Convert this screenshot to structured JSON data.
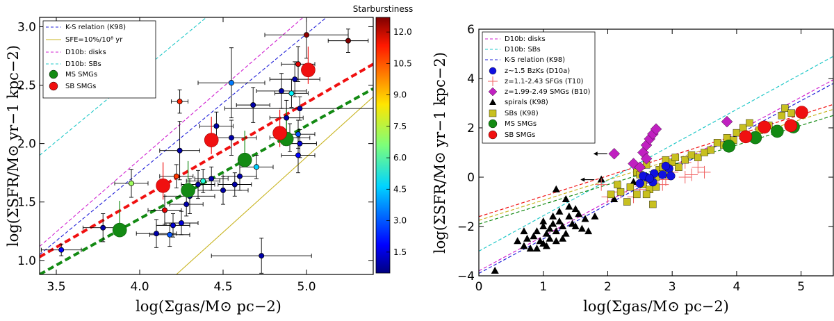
{
  "chart_data": [
    {
      "type": "scatter",
      "panel": "left",
      "xlabel": "log(Σgas/M⊙ pc−2)",
      "ylabel": "log(ΣSFR/M⊙ yr−1 kpc−2)",
      "xlim": [
        3.4,
        5.4
      ],
      "ylim": [
        0.88,
        3.08
      ],
      "xticks": [
        "3.5",
        "4.0",
        "4.5",
        "5.0"
      ],
      "yticks": [
        "1.0",
        "1.5",
        "2.0",
        "2.5",
        "3.0"
      ],
      "colorbar": {
        "title": "Starburstiness",
        "range": [
          0.5,
          12.7
        ],
        "ticks": [
          "1.5",
          "3.0",
          "4.5",
          "6.0",
          "7.5",
          "9.0",
          "10.5",
          "12.0"
        ]
      },
      "legend": [
        {
          "label": "K-S relation (K98)",
          "color": "#2020d8",
          "style": "dashed"
        },
        {
          "label": "SFE=10%/10⁸ yr",
          "color": "#c8b420",
          "style": "solid"
        },
        {
          "label": "D10b: disks",
          "color": "#d020d0",
          "style": "dashed"
        },
        {
          "label": "D10b: SBs",
          "color": "#20c8c8",
          "style": "dashed"
        },
        {
          "label": "MS SMGs",
          "color": "#138a13",
          "style": "marker"
        },
        {
          "label": "SB SMGs",
          "color": "#f01010",
          "style": "marker"
        }
      ],
      "lines": [
        {
          "name": "K-S relation (K98)",
          "color": "#2020d8",
          "points": [
            [
              3.4,
              1.05
            ],
            [
              5.12,
              3.08
            ]
          ]
        },
        {
          "name": "SFE=10%/10^8 yr",
          "color": "#c8b420",
          "points": [
            [
              4.22,
              0.88
            ],
            [
              5.4,
              2.4
            ]
          ]
        },
        {
          "name": "D10b: disks",
          "color": "#d020d0",
          "points": [
            [
              3.4,
              1.12
            ],
            [
              4.98,
              3.08
            ]
          ]
        },
        {
          "name": "D10b: SBs",
          "color": "#20c8c8",
          "points": [
            [
              3.4,
              1.9
            ],
            [
              4.4,
              3.08
            ]
          ]
        },
        {
          "name": "SB fit",
          "color": "#f01010",
          "points": [
            [
              3.4,
              1.03
            ],
            [
              5.4,
              2.68
            ]
          ]
        },
        {
          "name": "MS fit",
          "color": "#138a13",
          "points": [
            [
              3.4,
              0.88
            ],
            [
              5.4,
              2.47
            ]
          ]
        }
      ],
      "points": [
        {
          "x": 3.53,
          "y": 1.09,
          "c": 2.0,
          "xerr": 0.12,
          "yerr": 0.05
        },
        {
          "x": 3.78,
          "y": 1.28,
          "c": 1.0,
          "xerr": 0.12,
          "yerr": 0.12
        },
        {
          "x": 3.95,
          "y": 1.66,
          "c": 7.0,
          "xerr": 0.1,
          "yerr": 0.12
        },
        {
          "x": 4.1,
          "y": 1.23,
          "c": 1.0,
          "xerr": 0.12,
          "yerr": 0.12
        },
        {
          "x": 4.15,
          "y": 1.43,
          "c": 11.5,
          "xerr": 0.1,
          "yerr": 0.12
        },
        {
          "x": 4.18,
          "y": 1.22,
          "c": 3.0,
          "xerr": 0.12,
          "yerr": 0.1
        },
        {
          "x": 4.2,
          "y": 1.3,
          "c": 1.5,
          "xerr": 0.1,
          "yerr": 0.1
        },
        {
          "x": 4.22,
          "y": 1.72,
          "c": 10.5,
          "xerr": 0.1,
          "yerr": 0.1
        },
        {
          "x": 4.24,
          "y": 1.94,
          "c": 1.0,
          "xerr": 0.12,
          "yerr": 0.25
        },
        {
          "x": 4.24,
          "y": 2.36,
          "c": 10.8,
          "xerr": 0.05,
          "yerr": 0.1
        },
        {
          "x": 4.25,
          "y": 1.32,
          "c": 1.5,
          "xerr": 0.1,
          "yerr": 0.1
        },
        {
          "x": 4.28,
          "y": 1.48,
          "c": 1.0,
          "xerr": 0.1,
          "yerr": 0.1
        },
        {
          "x": 4.3,
          "y": 1.55,
          "c": 1.0,
          "xerr": 0.15,
          "yerr": 0.15
        },
        {
          "x": 4.35,
          "y": 1.65,
          "c": 1.0,
          "xerr": 0.1,
          "yerr": 0.12
        },
        {
          "x": 4.38,
          "y": 1.68,
          "c": 5.5,
          "xerr": 0.1,
          "yerr": 0.1
        },
        {
          "x": 4.43,
          "y": 1.7,
          "c": 1.0,
          "xerr": 0.1,
          "yerr": 0.1
        },
        {
          "x": 4.46,
          "y": 2.15,
          "c": 1.0,
          "xerr": 0.1,
          "yerr": 0.12
        },
        {
          "x": 4.5,
          "y": 1.6,
          "c": 1.0,
          "xerr": 0.15,
          "yerr": 0.12
        },
        {
          "x": 4.55,
          "y": 2.52,
          "c": 3.5,
          "xerr": 0.2,
          "yerr": 0.3
        },
        {
          "x": 4.55,
          "y": 2.05,
          "c": 1.0,
          "xerr": 0.15,
          "yerr": 0.15
        },
        {
          "x": 4.57,
          "y": 1.65,
          "c": 1.0,
          "xerr": 0.1,
          "yerr": 0.1
        },
        {
          "x": 4.6,
          "y": 1.72,
          "c": 1.0,
          "xerr": 0.1,
          "yerr": 0.12
        },
        {
          "x": 4.68,
          "y": 2.33,
          "c": 1.0,
          "xerr": 0.1,
          "yerr": 0.15
        },
        {
          "x": 4.7,
          "y": 1.8,
          "c": 4.5,
          "xerr": 0.1,
          "yerr": 0.1
        },
        {
          "x": 4.73,
          "y": 1.04,
          "c": 1.0,
          "xerr": 0.3,
          "yerr": 0.15
        },
        {
          "x": 4.85,
          "y": 2.45,
          "c": 1.0,
          "xerr": 0.15,
          "yerr": 0.15
        },
        {
          "x": 4.88,
          "y": 2.22,
          "c": 1.0,
          "xerr": 0.1,
          "yerr": 0.15
        },
        {
          "x": 4.9,
          "y": 2.05,
          "c": 1.0,
          "xerr": 0.12,
          "yerr": 0.12
        },
        {
          "x": 4.91,
          "y": 2.43,
          "c": 5.0,
          "xerr": 0.1,
          "yerr": 0.12
        },
        {
          "x": 4.93,
          "y": 2.55,
          "c": 1.0,
          "xerr": 0.15,
          "yerr": 0.15
        },
        {
          "x": 4.95,
          "y": 2.08,
          "c": 3.0,
          "xerr": 0.1,
          "yerr": 0.12
        },
        {
          "x": 4.96,
          "y": 2.0,
          "c": 1.5,
          "xerr": 0.1,
          "yerr": 0.12
        },
        {
          "x": 4.95,
          "y": 2.68,
          "c": 11.5,
          "xerr": 0.1,
          "yerr": 0.15
        },
        {
          "x": 4.96,
          "y": 2.3,
          "c": 1.0,
          "xerr": 0.45,
          "yerr": 0.1
        },
        {
          "x": 4.95,
          "y": 1.9,
          "c": 2.0,
          "xerr": 0.1,
          "yerr": 0.15
        },
        {
          "x": 5.0,
          "y": 2.93,
          "c": 12.5,
          "xerr": 0.25,
          "yerr": 0.2
        },
        {
          "x": 5.25,
          "y": 2.88,
          "c": 12.7,
          "xerr": 0.12,
          "yerr": 0.1
        }
      ],
      "ms_smgs": [
        {
          "x": 3.88,
          "y": 1.26
        },
        {
          "x": 4.29,
          "y": 1.6
        },
        {
          "x": 4.63,
          "y": 1.86
        },
        {
          "x": 4.88,
          "y": 2.04
        }
      ],
      "sb_smgs": [
        {
          "x": 4.14,
          "y": 1.64
        },
        {
          "x": 4.43,
          "y": 2.03
        },
        {
          "x": 4.84,
          "y": 2.09
        },
        {
          "x": 5.01,
          "y": 2.63
        }
      ]
    },
    {
      "type": "scatter",
      "panel": "right",
      "xlabel": "log(Σgas/M⊙ pc−2)",
      "ylabel": "log(ΣSFR/M⊙ yr−1 kpc−2)",
      "xlim": [
        0,
        5.5
      ],
      "ylim": [
        -4,
        6
      ],
      "xticks": [
        "0",
        "1",
        "2",
        "3",
        "4",
        "5"
      ],
      "yticks": [
        "−4",
        "−2",
        "0",
        "2",
        "4",
        "6"
      ],
      "legend": [
        {
          "label": "D10b: disks",
          "color": "#d020d0",
          "style": "dashed"
        },
        {
          "label": "D10b: SBs",
          "color": "#20c8c8",
          "style": "dashed"
        },
        {
          "label": "K-S relation (K98)",
          "color": "#2020d8",
          "style": "dashed"
        },
        {
          "label": "z~1.5 BzKs (D10a)",
          "color": "#1010e0",
          "style": "circle"
        },
        {
          "label": "z=1.1-2.43 SFGs (T10)",
          "color": "#f06060",
          "style": "plus"
        },
        {
          "label": "z=1.99-2.49 SMGs (B10)",
          "color": "#c020c0",
          "style": "diamond"
        },
        {
          "label": "spirals (K98)",
          "color": "#000000",
          "style": "triangle"
        },
        {
          "label": "SBs (K98)",
          "color": "#c8c020",
          "style": "square"
        },
        {
          "label": "MS SMGs",
          "color": "#138a13",
          "style": "circle"
        },
        {
          "label": "SB SMGs",
          "color": "#f01010",
          "style": "circle"
        }
      ],
      "lines": [
        {
          "name": "D10b: disks",
          "color": "#d020d0",
          "points": [
            [
              0,
              -3.8
            ],
            [
              5.5,
              3.95
            ]
          ]
        },
        {
          "name": "D10b: SBs",
          "color": "#20c8c8",
          "points": [
            [
              0,
              -3.0
            ],
            [
              5.5,
              4.9
            ]
          ]
        },
        {
          "name": "K-S relation (K98)",
          "color": "#2020d8",
          "points": [
            [
              0,
              -3.9
            ],
            [
              5.5,
              3.8
            ]
          ]
        },
        {
          "name": "SB fit",
          "color": "#f01010",
          "points": [
            [
              0,
              -1.6
            ],
            [
              5.5,
              2.95
            ]
          ]
        },
        {
          "name": "MS fit",
          "color": "#138a13",
          "points": [
            [
              0,
              -1.9
            ],
            [
              5.5,
              2.5
            ]
          ]
        },
        {
          "name": "SFE line",
          "color": "#c8b420",
          "points": [
            [
              0,
              -1.75
            ],
            [
              5.5,
              2.75
            ]
          ]
        }
      ],
      "spirals": [
        [
          0.25,
          -3.8
        ],
        [
          0.6,
          -2.6
        ],
        [
          0.7,
          -2.8
        ],
        [
          0.75,
          -2.5
        ],
        [
          0.8,
          -2.9
        ],
        [
          0.85,
          -2.4
        ],
        [
          0.9,
          -2.2
        ],
        [
          0.95,
          -2.6
        ],
        [
          1.0,
          -2.0
        ],
        [
          1.0,
          -2.7
        ],
        [
          1.05,
          -2.3
        ],
        [
          1.1,
          -2.1
        ],
        [
          1.1,
          -2.5
        ],
        [
          1.15,
          -1.9
        ],
        [
          1.2,
          -2.2
        ],
        [
          1.2,
          -2.6
        ],
        [
          1.25,
          -1.8
        ],
        [
          1.3,
          -2.0
        ],
        [
          1.35,
          -2.3
        ],
        [
          1.4,
          -1.6
        ],
        [
          1.4,
          -1.2
        ],
        [
          1.45,
          -1.9
        ],
        [
          1.5,
          -2.0
        ],
        [
          1.55,
          -1.5
        ],
        [
          1.6,
          -2.1
        ],
        [
          1.65,
          -1.7
        ],
        [
          1.7,
          -2.2
        ],
        [
          1.8,
          -1.6
        ],
        [
          1.9,
          -0.1
        ],
        [
          2.1,
          -0.9
        ],
        [
          1.0,
          -1.8
        ],
        [
          0.9,
          -2.9
        ],
        [
          1.3,
          -2.5
        ],
        [
          0.7,
          -2.2
        ],
        [
          1.15,
          -1.6
        ],
        [
          1.05,
          -2.8
        ],
        [
          1.25,
          -1.4
        ],
        [
          1.35,
          -0.9
        ],
        [
          1.5,
          -1.3
        ],
        [
          1.2,
          -0.5
        ],
        [
          2.4,
          -0.2
        ]
      ],
      "sbs_k98": [
        [
          2.05,
          -0.7
        ],
        [
          2.15,
          -0.3
        ],
        [
          2.2,
          -0.6
        ],
        [
          2.3,
          -1.0
        ],
        [
          2.35,
          -0.4
        ],
        [
          2.45,
          0.2
        ],
        [
          2.45,
          -0.7
        ],
        [
          2.5,
          0.1
        ],
        [
          2.55,
          -0.3
        ],
        [
          2.6,
          0.5
        ],
        [
          2.65,
          -0.5
        ],
        [
          2.7,
          -1.1
        ],
        [
          2.75,
          0.0
        ],
        [
          2.8,
          0.3
        ],
        [
          2.85,
          0.4
        ],
        [
          2.9,
          0.7
        ],
        [
          2.95,
          0.1
        ],
        [
          3.0,
          0.6
        ],
        [
          3.05,
          0.8
        ],
        [
          3.1,
          0.4
        ],
        [
          3.2,
          0.7
        ],
        [
          3.3,
          0.9
        ],
        [
          3.4,
          0.8
        ],
        [
          3.5,
          1.0
        ],
        [
          3.6,
          1.1
        ],
        [
          3.7,
          1.4
        ],
        [
          3.8,
          1.3
        ],
        [
          3.85,
          1.6
        ],
        [
          3.95,
          1.5
        ],
        [
          4.0,
          1.8
        ],
        [
          4.1,
          2.0
        ],
        [
          4.2,
          2.2
        ],
        [
          4.3,
          1.7
        ],
        [
          4.35,
          1.9
        ],
        [
          4.5,
          2.1
        ],
        [
          4.7,
          2.5
        ],
        [
          4.75,
          2.8
        ],
        [
          4.85,
          2.6
        ],
        [
          2.6,
          -0.7
        ],
        [
          2.75,
          -0.4
        ]
      ],
      "bzks": [
        [
          2.5,
          -0.25
        ],
        [
          2.6,
          0.0
        ],
        [
          2.7,
          -0.2
        ],
        [
          2.72,
          0.15
        ],
        [
          2.85,
          0.1
        ],
        [
          2.95,
          0.35
        ],
        [
          2.98,
          0.05
        ],
        [
          2.55,
          0.05
        ],
        [
          2.65,
          -0.05
        ],
        [
          2.9,
          0.45
        ]
      ],
      "sfgs_t10": [
        [
          1.9,
          -0.3
        ],
        [
          2.0,
          -0.8
        ],
        [
          2.2,
          -0.6
        ],
        [
          2.4,
          -0.8
        ],
        [
          2.5,
          -0.5
        ],
        [
          2.6,
          -0.4
        ],
        [
          2.7,
          -0.2
        ],
        [
          2.85,
          -0.3
        ],
        [
          3.0,
          0.2
        ],
        [
          3.2,
          0.0
        ],
        [
          3.4,
          0.4
        ],
        [
          3.5,
          0.2
        ],
        [
          3.2,
          0.6
        ],
        [
          2.9,
          -0.1
        ],
        [
          3.3,
          0.1
        ]
      ],
      "smgs_b10": [
        [
          2.1,
          0.95
        ],
        [
          2.4,
          0.55
        ],
        [
          2.5,
          0.4
        ],
        [
          2.55,
          1.0
        ],
        [
          2.6,
          1.3
        ],
        [
          2.65,
          1.55
        ],
        [
          2.7,
          1.75
        ],
        [
          2.75,
          1.95
        ],
        [
          3.85,
          2.25
        ],
        [
          2.6,
          0.75
        ]
      ],
      "ms_smgs": [
        [
          3.88,
          1.26
        ],
        [
          4.29,
          1.6
        ],
        [
          4.63,
          1.86
        ],
        [
          4.88,
          2.04
        ]
      ],
      "sb_smgs": [
        [
          4.14,
          1.64
        ],
        [
          4.43,
          2.03
        ],
        [
          4.84,
          2.09
        ],
        [
          5.01,
          2.63
        ]
      ],
      "upper_limit_arrows": [
        [
          2.1,
          0.95
        ],
        [
          1.9,
          -0.1
        ]
      ]
    }
  ]
}
